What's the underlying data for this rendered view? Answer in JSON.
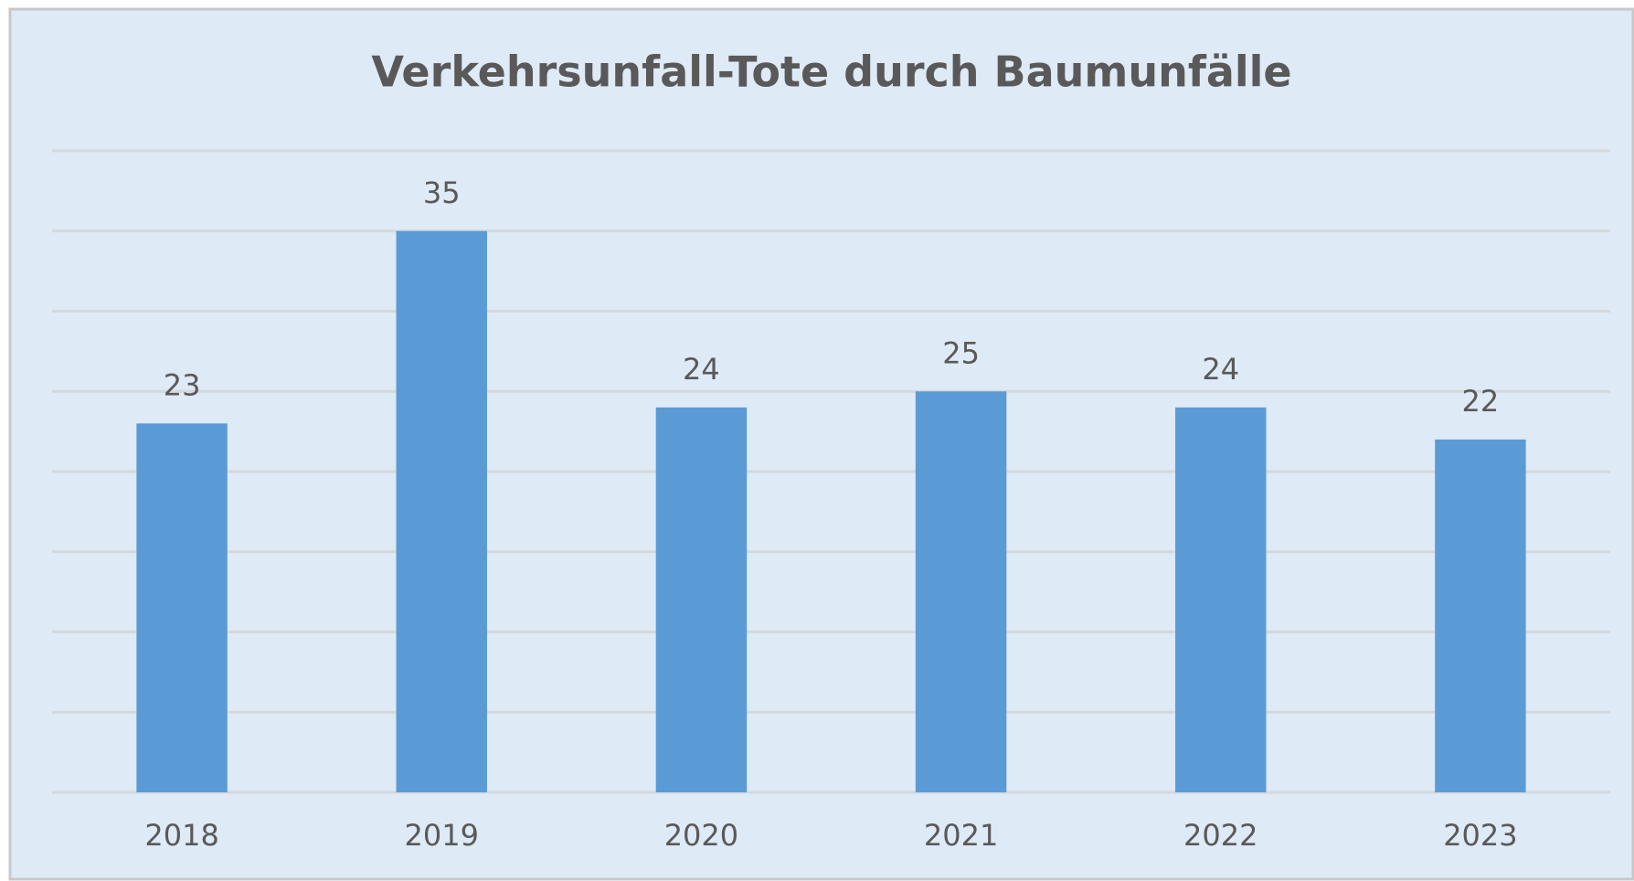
{
  "chart_data": {
    "type": "bar",
    "title": "Verkehrsunfall-Tote durch Baumunfälle",
    "categories": [
      "2018",
      "2019",
      "2020",
      "2021",
      "2022",
      "2023"
    ],
    "values": [
      23,
      35,
      24,
      25,
      24,
      22
    ],
    "color": "#5b9bd5",
    "ylim": [
      0,
      40
    ],
    "yticks": [
      0,
      5,
      10,
      15,
      20,
      25,
      30,
      35,
      40
    ],
    "grid": true
  }
}
